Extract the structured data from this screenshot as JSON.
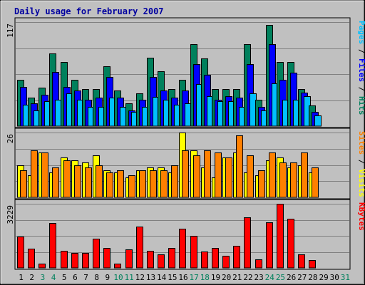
{
  "chart_data": {
    "type": "bar",
    "title": "Daily usage for February 2007",
    "x": [
      "1",
      "2",
      "3",
      "4",
      "5",
      "6",
      "7",
      "8",
      "9",
      "10",
      "11",
      "12",
      "13",
      "14",
      "15",
      "16",
      "17",
      "18",
      "19",
      "20",
      "21",
      "22",
      "23",
      "24",
      "25",
      "26",
      "27",
      "28",
      "29",
      "30",
      "31"
    ],
    "weekend_days": [
      "3",
      "4",
      "10",
      "11",
      "17",
      "18",
      "24",
      "25",
      "31"
    ],
    "colors": {
      "hits": "#00805c",
      "files": "#0000ff",
      "pages": "#00c0ff",
      "visits": "#ffff00",
      "sites": "#ff8000",
      "kbytes": "#ff0000",
      "weekday_label": "#000000",
      "weekend_label": "#00805c",
      "title": "#0000a0"
    },
    "panels": [
      {
        "ymax_label": "117",
        "ylim": [
          0,
          117
        ],
        "side_label_parts": [
          {
            "text": "Pages",
            "color": "#00c0ff"
          },
          {
            "text": " / ",
            "color": "#000000"
          },
          {
            "text": "Files",
            "color": "#0000ff"
          },
          {
            "text": " / ",
            "color": "#000000"
          },
          {
            "text": "Hits",
            "color": "#00805c"
          }
        ],
        "series": [
          {
            "color_key": "hits",
            "values": [
              52,
              32,
              43,
              82,
              72,
              52,
              42,
              42,
              67,
              40,
              26,
              37,
              77,
              62,
              42,
              52,
              92,
              76,
              42,
              42,
              42,
              92,
              30,
              114,
              72,
              72,
              42,
              23,
              0,
              0,
              0
            ]
          },
          {
            "color_key": "files",
            "values": [
              44,
              26,
              35,
              61,
              44,
              40,
              30,
              32,
              55,
              32,
              18,
              30,
              55,
              40,
              32,
              40,
              70,
              58,
              30,
              34,
              32,
              70,
              22,
              92,
              52,
              60,
              38,
              16,
              0,
              0,
              0
            ]
          },
          {
            "color_key": "pages",
            "values": [
              24,
              18,
              28,
              30,
              37,
              30,
              22,
              22,
              32,
              22,
              16,
              22,
              33,
              30,
              24,
              26,
              47,
              34,
              28,
              28,
              22,
              37,
              18,
              48,
              30,
              30,
              34,
              12,
              0,
              0,
              0
            ]
          }
        ]
      },
      {
        "ymax_label": "26",
        "ylim": [
          0,
          26
        ],
        "side_label_parts": [
          {
            "text": "Sites",
            "color": "#ff8000"
          },
          {
            "text": " / ",
            "color": "#000000"
          },
          {
            "text": "Visits",
            "color": "#ffff00"
          }
        ],
        "series": [
          {
            "color_key": "visits",
            "values": [
              13,
              9,
              18,
              10,
              16,
              15,
              14,
              17,
              11,
              10,
              8,
              11,
              12,
              12,
              10,
              26,
              19,
              12,
              8,
              16,
              18,
              10,
              9,
              15,
              16,
              12,
              13,
              10,
              0,
              0,
              0
            ]
          },
          {
            "color_key": "sites",
            "values": [
              11,
              19,
              18,
              12,
              15,
              13,
              12,
              13,
              10,
              11,
              9,
              11,
              11,
              11,
              13,
              19,
              17,
              19,
              18,
              16,
              25,
              17,
              11,
              18,
              14,
              14,
              18,
              12,
              0,
              0,
              0
            ]
          }
        ]
      },
      {
        "ymax_label": "3229",
        "ylim": [
          0,
          3229
        ],
        "side_label_parts": [
          {
            "text": "KBytes",
            "color": "#ff0000"
          }
        ],
        "series": [
          {
            "color_key": "kbytes",
            "values": [
              1580,
              960,
              210,
              2270,
              870,
              760,
              740,
              1460,
              1000,
              210,
              920,
              2080,
              850,
              690,
              1000,
              1990,
              1600,
              830,
              1000,
              610,
              1110,
              2530,
              430,
              2280,
              3229,
              2460,
              690,
              410,
              0,
              0,
              0
            ]
          }
        ]
      }
    ]
  }
}
